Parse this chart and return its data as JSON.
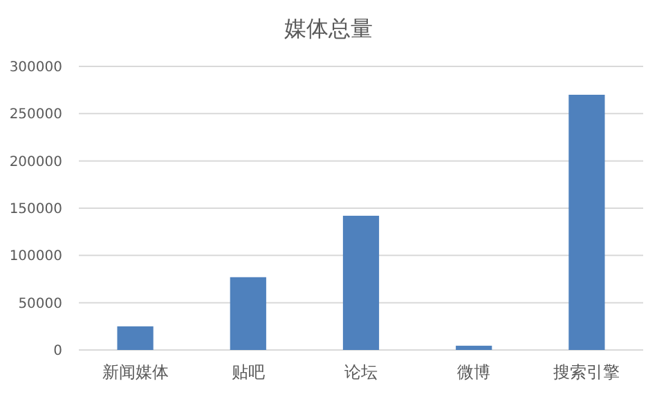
{
  "chart_data": {
    "type": "bar",
    "title": "媒体总量",
    "categories": [
      "新闻媒体",
      "贴吧",
      "论坛",
      "微博",
      "搜索引擎"
    ],
    "values": [
      25000,
      77000,
      142000,
      4500,
      270000
    ],
    "color": "#4f81bd",
    "ylim": [
      0,
      300000
    ],
    "yticks": [
      0,
      50000,
      100000,
      150000,
      200000,
      250000,
      300000
    ],
    "grid": "y"
  }
}
